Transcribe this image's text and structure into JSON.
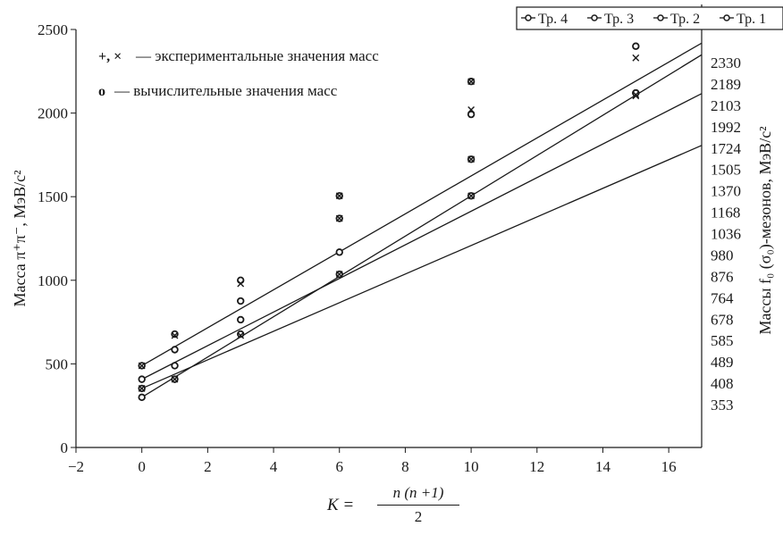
{
  "chart_data": {
    "type": "line",
    "xlim": [
      -2,
      17
    ],
    "ylim": [
      0,
      2500
    ],
    "x_ticks": [
      -2,
      0,
      2,
      4,
      6,
      8,
      10,
      12,
      14,
      16
    ],
    "y_ticks": [
      0,
      500,
      1000,
      1500,
      2000,
      2500
    ],
    "y_tick_labels": [
      "0",
      "500",
      "1000",
      "1500",
      "2000",
      "2500"
    ],
    "x_tick_labels": [
      "−2",
      "0",
      "2",
      "4",
      "6",
      "8",
      "10",
      "12",
      "14",
      "16"
    ],
    "ylabel": "Масса π⁺π⁻, МэВ/c²",
    "ylabel_right": "Массы f₀ (σ₀)-мезонов, МэВ/c²",
    "xlabel": {
      "lhs": "K =",
      "numerator": "n (n +1)",
      "denominator": "2"
    },
    "right_labels": [
      "2330",
      "2189",
      "2103",
      "1992",
      "1724",
      "1505",
      "1370",
      "1168",
      "1036",
      "980",
      "876",
      "764",
      "678",
      "585",
      "489",
      "408",
      "353"
    ],
    "legend": {
      "placement": "top-right",
      "entries": [
        "Тр. 4",
        "Тр. 3",
        "Тр. 2",
        "Тр. 1"
      ]
    },
    "annotations": [
      {
        "symbols": "+, ×",
        "text": "— экспериментальные значения масс"
      },
      {
        "symbols": "o",
        "text": "— вычислительные значения масс"
      }
    ],
    "grid": false,
    "series": [
      {
        "name": "Тр. 4",
        "intercept": 489,
        "slope": 113.5,
        "computed": [
          [
            0,
            489
          ],
          [
            1,
            678
          ],
          [
            3,
            1000
          ],
          [
            6,
            1505
          ],
          [
            10,
            2189
          ]
        ],
        "experimental": [
          [
            0,
            489
          ],
          [
            1,
            670
          ],
          [
            6,
            1505
          ],
          [
            10,
            2189
          ]
        ]
      },
      {
        "name": "Тр. 3",
        "intercept": 408,
        "slope": 100.5,
        "computed": [
          [
            0,
            408
          ],
          [
            1,
            585
          ],
          [
            3,
            876
          ],
          [
            6,
            1370
          ],
          [
            10,
            1992
          ],
          [
            15,
            2400
          ]
        ],
        "experimental": [
          [
            3,
            980
          ],
          [
            6,
            1370
          ],
          [
            10,
            2020
          ],
          [
            15,
            2330
          ]
        ]
      },
      {
        "name": "Тр. 2",
        "intercept": 353,
        "slope": 85.5,
        "computed": [
          [
            0,
            353
          ],
          [
            1,
            489
          ],
          [
            3,
            764
          ],
          [
            6,
            1168
          ],
          [
            10,
            1724
          ],
          [
            15,
            2120
          ]
        ],
        "experimental": [
          [
            0,
            353
          ],
          [
            10,
            1724
          ],
          [
            15,
            2103
          ]
        ]
      },
      {
        "name": "Тр. 1",
        "intercept": 300,
        "slope": 120.5,
        "computed": [
          [
            0,
            300
          ],
          [
            1,
            408
          ],
          [
            3,
            678
          ],
          [
            6,
            1036
          ],
          [
            10,
            1505
          ],
          [
            15,
            2120
          ]
        ],
        "experimental": [
          [
            1,
            408
          ],
          [
            3,
            670
          ],
          [
            6,
            1036
          ],
          [
            10,
            1505
          ],
          [
            15,
            2110
          ]
        ]
      }
    ],
    "colors": {
      "line": "#1a1a1a",
      "marker": "#1a1a1a",
      "background": "#ffffff"
    }
  }
}
